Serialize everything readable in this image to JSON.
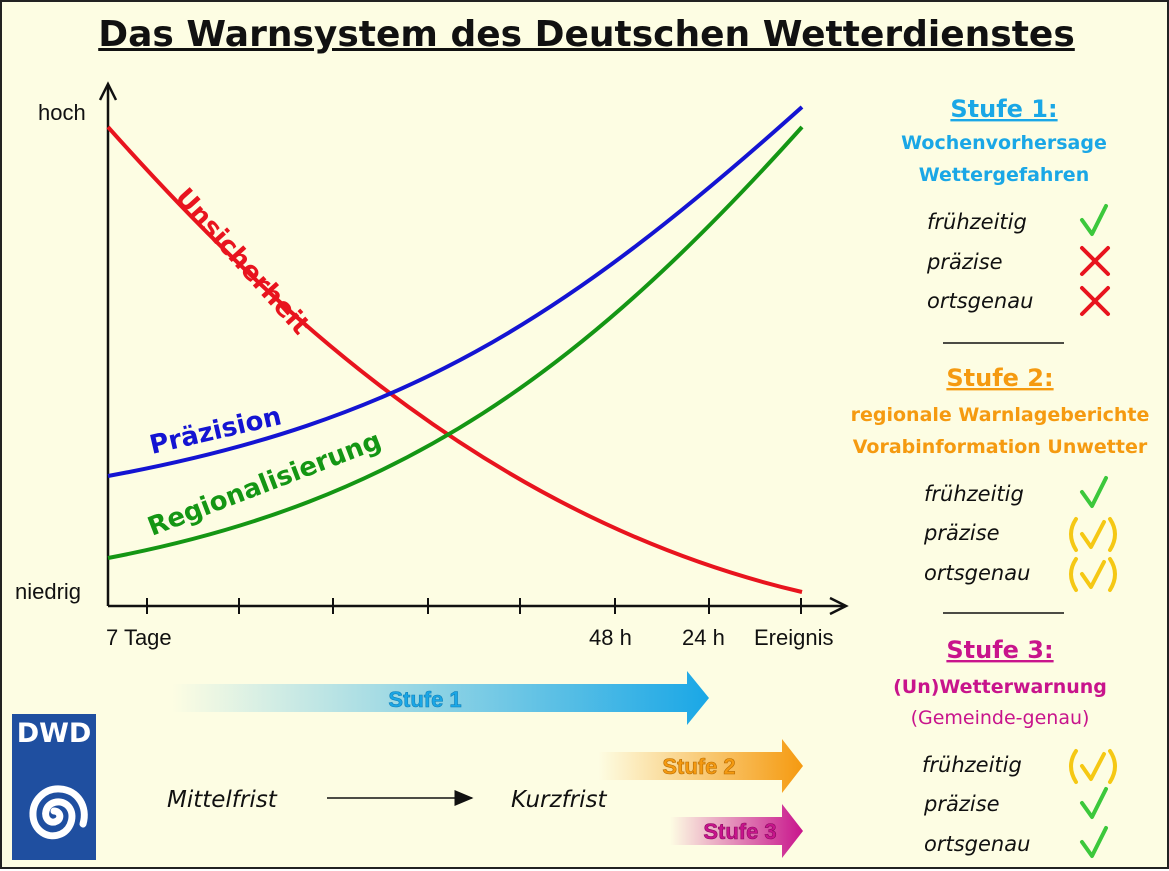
{
  "title": "Das Warnsystem des Deutschen Wetterdienstes",
  "axis": {
    "y_high": "hoch",
    "y_low": "niedrig",
    "x_ticks": [
      "7 Tage",
      "48 h",
      "24 h",
      "Ereignis"
    ]
  },
  "curves": {
    "uncertainty": "Unsicherheit",
    "precision": "Präzision",
    "regionalization": "Regionalisierung"
  },
  "stage_arrows": [
    "Stufe 1",
    "Stufe 2",
    "Stufe 3"
  ],
  "timeline": {
    "medium": "Mittelfrist",
    "short": "Kurzfrist"
  },
  "logo": {
    "text": "DWD",
    "icon": "spiral-icon"
  },
  "stages": [
    {
      "title": "Stufe 1:",
      "subtitle": [
        "Wochenvorhersage",
        "Wettergefahren"
      ],
      "color": "#1aa7e6",
      "criteria": [
        {
          "label": "frühzeitig",
          "status": "check"
        },
        {
          "label": "präzise",
          "status": "cross"
        },
        {
          "label": "ortsgenau",
          "status": "cross"
        }
      ]
    },
    {
      "title": "Stufe 2:",
      "subtitle": [
        "regionale Warnlageberichte",
        "Vorabinformation Unwetter"
      ],
      "color": "#f59a10",
      "criteria": [
        {
          "label": "frühzeitig",
          "status": "check"
        },
        {
          "label": "präzise",
          "status": "partial"
        },
        {
          "label": "ortsgenau",
          "status": "partial"
        }
      ]
    },
    {
      "title": "Stufe 3:",
      "subtitle": [
        "(Un)Wetterwarnung",
        "(Gemeinde-genau)"
      ],
      "color": "#c8148c",
      "criteria": [
        {
          "label": "frühzeitig",
          "status": "partial"
        },
        {
          "label": "präzise",
          "status": "check"
        },
        {
          "label": "ortsgenau",
          "status": "check"
        }
      ]
    }
  ],
  "colors": {
    "uncertainty": "#e8141e",
    "precision": "#1414d2",
    "regionalization": "#149614",
    "check": "#3cc83c",
    "cross": "#e8141e",
    "partial": "#f5c814"
  }
}
